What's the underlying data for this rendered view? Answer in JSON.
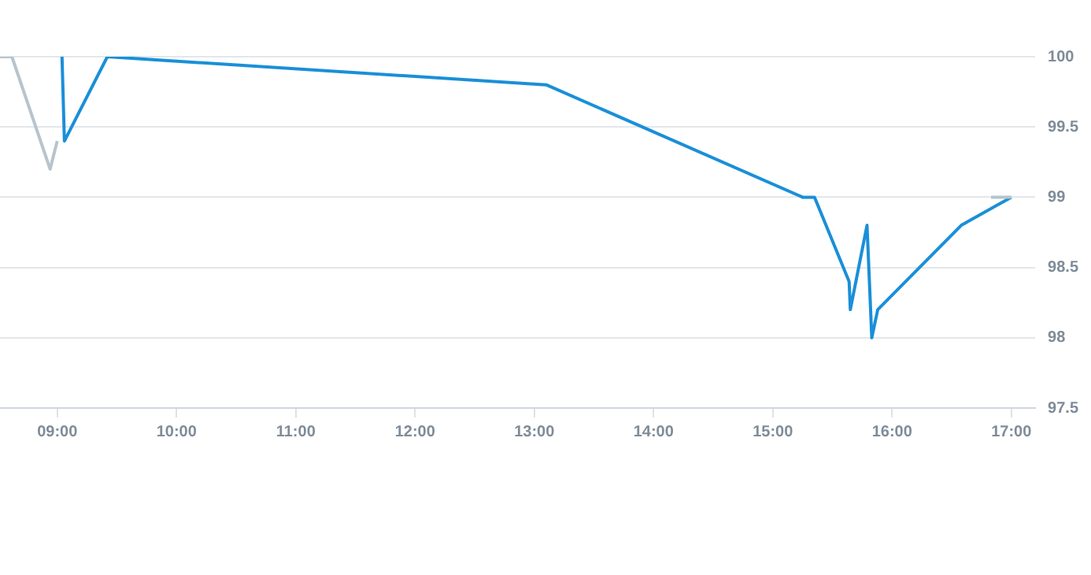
{
  "chart_data": {
    "type": "line",
    "xlim": [
      8.52,
      17.2
    ],
    "xticks": [
      {
        "value": 9,
        "label": "09:00"
      },
      {
        "value": 10,
        "label": "10:00"
      },
      {
        "value": 11,
        "label": "11:00"
      },
      {
        "value": 12,
        "label": "12:00"
      },
      {
        "value": 13,
        "label": "13:00"
      },
      {
        "value": 14,
        "label": "14:00"
      },
      {
        "value": 15,
        "label": "15:00"
      },
      {
        "value": 16,
        "label": "16:00"
      },
      {
        "value": 17,
        "label": "17:00"
      }
    ],
    "ylim": [
      97.5,
      100
    ],
    "yticks": [
      97.5,
      98,
      98.5,
      99,
      99.5,
      100
    ],
    "grid": "y",
    "marker": "none",
    "line_style": "solid",
    "series": [
      {
        "color": "#b8c4cc",
        "x": [
          8.52,
          8.62,
          8.94,
          9.0
        ],
        "values": [
          100,
          100,
          99.2,
          99.4
        ]
      },
      {
        "color": "#b8c4cc",
        "x": [
          16.83,
          17.0
        ],
        "values": [
          99.0,
          99.0
        ]
      },
      {
        "color": "#1a8fd8",
        "x": [
          9.04,
          9.06,
          9.42,
          13.1,
          15.25,
          15.35,
          15.64,
          15.65,
          15.79,
          15.83,
          15.88,
          16.58,
          17.0
        ],
        "values": [
          100,
          99.4,
          100,
          99.8,
          99.0,
          99.0,
          98.4,
          98.2,
          98.8,
          98.0,
          98.2,
          98.8,
          99.0
        ]
      }
    ]
  }
}
